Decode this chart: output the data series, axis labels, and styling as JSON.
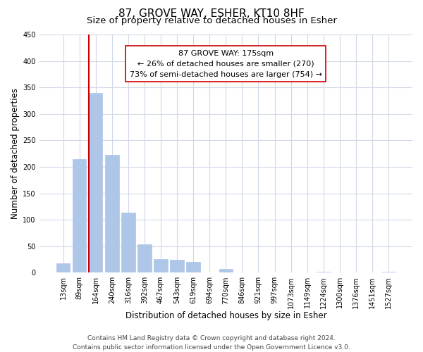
{
  "title": "87, GROVE WAY, ESHER, KT10 8HF",
  "subtitle": "Size of property relative to detached houses in Esher",
  "xlabel": "Distribution of detached houses by size in Esher",
  "ylabel": "Number of detached properties",
  "footer_line1": "Contains HM Land Registry data © Crown copyright and database right 2024.",
  "footer_line2": "Contains public sector information licensed under the Open Government Licence v3.0.",
  "bin_labels": [
    "13sqm",
    "89sqm",
    "164sqm",
    "240sqm",
    "316sqm",
    "392sqm",
    "467sqm",
    "543sqm",
    "619sqm",
    "694sqm",
    "770sqm",
    "846sqm",
    "921sqm",
    "997sqm",
    "1073sqm",
    "1149sqm",
    "1224sqm",
    "1300sqm",
    "1376sqm",
    "1451sqm",
    "1527sqm"
  ],
  "bar_heights": [
    18,
    215,
    340,
    222,
    113,
    53,
    26,
    25,
    20,
    0,
    7,
    0,
    0,
    0,
    0,
    0,
    2,
    0,
    0,
    0,
    2
  ],
  "bar_color": "#aec6e8",
  "bar_edge_color": "#aec6e8",
  "grid_color": "#d0d8e8",
  "property_line_bin": 2,
  "property_line_color": "#cc0000",
  "annotation_line1": "87 GROVE WAY: 175sqm",
  "annotation_line2": "← 26% of detached houses are smaller (270)",
  "annotation_line3": "73% of semi-detached houses are larger (754) →",
  "annotation_box_color": "#ffffff",
  "annotation_box_edge": "#cc0000",
  "ylim": [
    0,
    450
  ],
  "yticks": [
    0,
    50,
    100,
    150,
    200,
    250,
    300,
    350,
    400,
    450
  ],
  "title_fontsize": 11,
  "subtitle_fontsize": 9.5,
  "axis_label_fontsize": 8.5,
  "tick_fontsize": 7,
  "annotation_fontsize": 8,
  "footer_fontsize": 6.5
}
